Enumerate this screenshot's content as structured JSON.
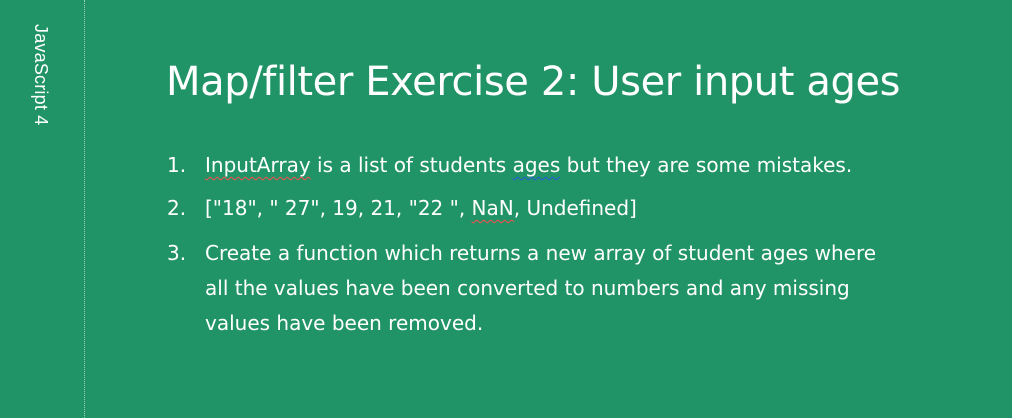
{
  "sidebar": {
    "label": "JavaScript 4"
  },
  "slide": {
    "title": "Map/filter Exercise 2: User input ages",
    "items": [
      {
        "number": "1.",
        "part_a": "InputArray",
        "part_b": " is a list of students ",
        "part_c": "ages",
        "part_d": " but they are some mistakes."
      },
      {
        "number": "2.",
        "part_a": "[\"18\", \" 27\", 19, 21, \"22 \", ",
        "part_b": "NaN",
        "part_c": ", Undefined]"
      },
      {
        "number": "3.",
        "text": "Create a function which returns a new array of student ages where all the values have been converted to numbers and any missing values have been removed."
      }
    ]
  },
  "colors": {
    "background": "#219467",
    "text": "#ffffff",
    "spellcheck_red": "#ff4b4b",
    "spellcheck_blue": "#245bdb"
  }
}
